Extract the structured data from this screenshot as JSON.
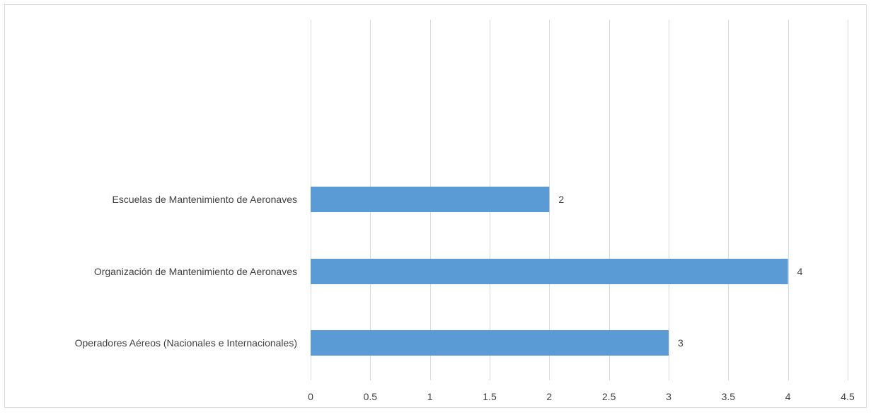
{
  "chart_data": {
    "type": "bar",
    "orientation": "horizontal",
    "categories": [
      "Escuelas de Mantenimiento de Aeronaves",
      "Organización de Mantenimiento de Aeronaves",
      "Operadores Aéreos (Nacionales e Internacionales)"
    ],
    "values": [
      2,
      4,
      3
    ],
    "data_labels": [
      "2",
      "4",
      "3"
    ],
    "xlim": [
      0,
      4.5
    ],
    "x_ticks": [
      0,
      0.5,
      1,
      1.5,
      2,
      2.5,
      3,
      3.5,
      4,
      4.5
    ],
    "x_tick_labels": [
      "0",
      "0.5",
      "1",
      "1.5",
      "2",
      "2.5",
      "3",
      "3.5",
      "4",
      "4.5"
    ],
    "grid": "vertical",
    "legend": "none",
    "bar_color": "#5b9bd5",
    "gridline_color": "#d9d9d9",
    "border_color": "#d9d9d9",
    "text_color": "#404040"
  }
}
